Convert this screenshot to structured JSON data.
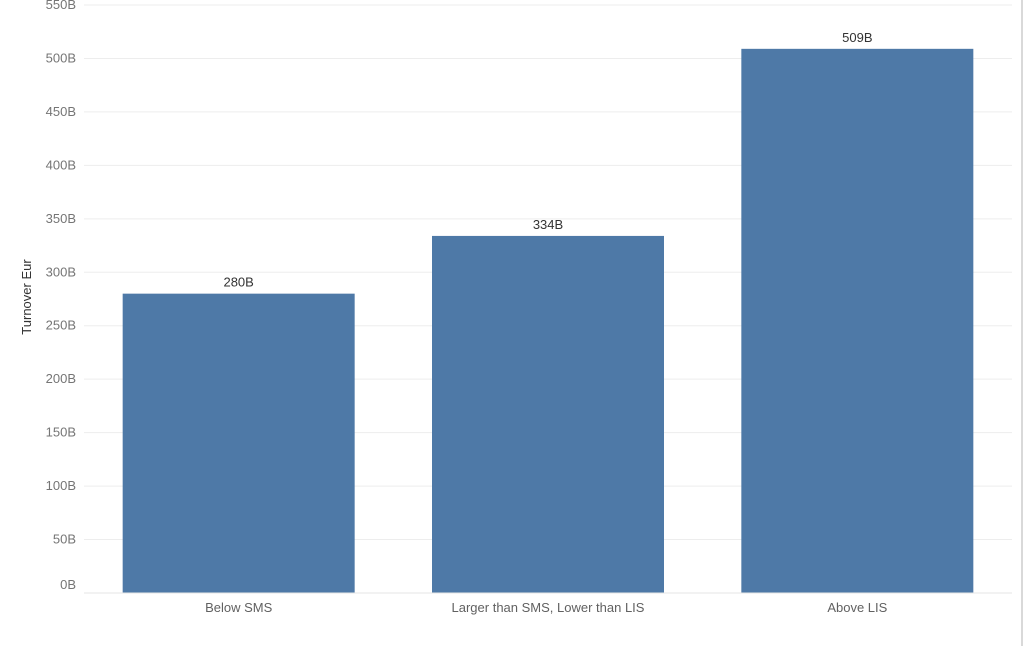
{
  "colors": {
    "bar": "#4e79a7"
  },
  "chart_data": {
    "type": "bar",
    "categories": [
      "Below SMS",
      "Larger than SMS, Lower than LIS",
      "Above LIS"
    ],
    "values": [
      280,
      334,
      509
    ],
    "data_labels": [
      "280B",
      "334B",
      "509B"
    ],
    "ylabel": "Turnover Eur",
    "xlabel": "",
    "ylim": [
      0,
      550
    ],
    "yticks": [
      0,
      50,
      100,
      150,
      200,
      250,
      300,
      350,
      400,
      450,
      500,
      550
    ],
    "ytick_labels": [
      "0B",
      "50B",
      "100B",
      "150B",
      "200B",
      "250B",
      "300B",
      "350B",
      "400B",
      "450B",
      "500B",
      "550B"
    ],
    "unit_suffix": "B",
    "grid": true
  }
}
